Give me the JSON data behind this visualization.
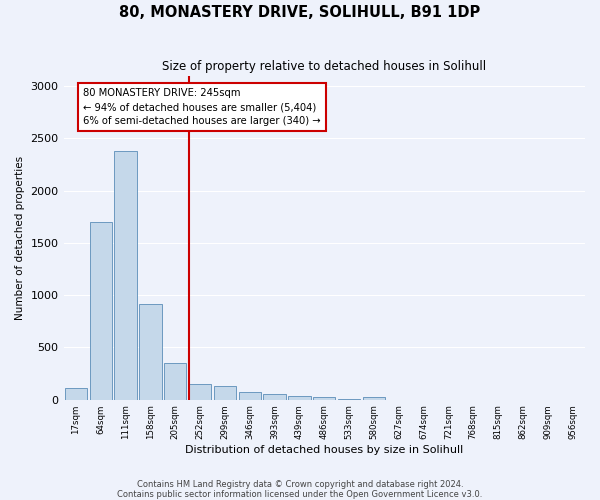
{
  "title": "80, MONASTERY DRIVE, SOLIHULL, B91 1DP",
  "subtitle": "Size of property relative to detached houses in Solihull",
  "xlabel": "Distribution of detached houses by size in Solihull",
  "ylabel": "Number of detached properties",
  "categories": [
    "17sqm",
    "64sqm",
    "111sqm",
    "158sqm",
    "205sqm",
    "252sqm",
    "299sqm",
    "346sqm",
    "393sqm",
    "439sqm",
    "486sqm",
    "533sqm",
    "580sqm",
    "627sqm",
    "674sqm",
    "721sqm",
    "768sqm",
    "815sqm",
    "862sqm",
    "909sqm",
    "956sqm"
  ],
  "values": [
    115,
    1700,
    2375,
    920,
    350,
    155,
    130,
    75,
    55,
    35,
    30,
    10,
    30,
    0,
    0,
    0,
    0,
    0,
    0,
    0,
    0
  ],
  "bar_color": "#c5d8ea",
  "bar_edge_color": "#5b8db8",
  "bg_color": "#eef2fb",
  "grid_color": "#ffffff",
  "red_line_index": 5,
  "annotation_text": "80 MONASTERY DRIVE: 245sqm\n← 94% of detached houses are smaller (5,404)\n6% of semi-detached houses are larger (340) →",
  "annotation_box_color": "#ffffff",
  "annotation_box_edge": "#cc0000",
  "red_line_color": "#cc0000",
  "footer_line1": "Contains HM Land Registry data © Crown copyright and database right 2024.",
  "footer_line2": "Contains public sector information licensed under the Open Government Licence v3.0.",
  "ylim": [
    0,
    3100
  ],
  "yticks": [
    0,
    500,
    1000,
    1500,
    2000,
    2500,
    3000
  ]
}
